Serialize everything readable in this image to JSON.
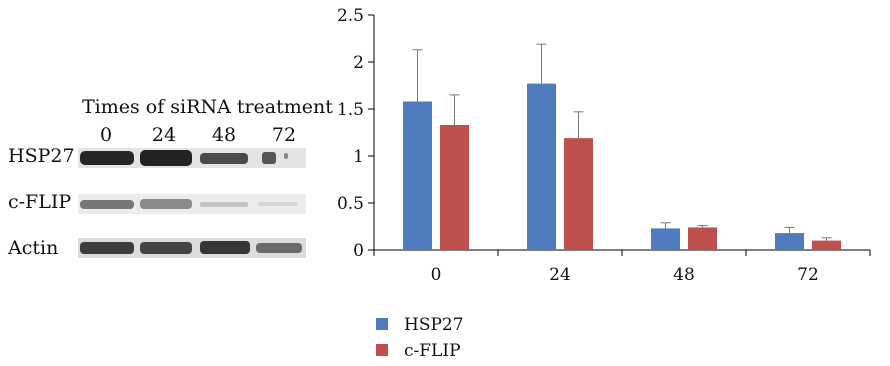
{
  "blot": {
    "title": "Times of siRNA treatment",
    "lanes": [
      "0",
      "24",
      "48",
      "72"
    ],
    "rows": [
      "HSP27",
      "c-FLIP",
      "Actin"
    ]
  },
  "chart_data": {
    "type": "bar",
    "categories": [
      "0",
      "24",
      "48",
      "72"
    ],
    "series": [
      {
        "name": "HSP27",
        "values": [
          1.58,
          1.77,
          0.23,
          0.18
        ],
        "errors": [
          0.55,
          0.42,
          0.06,
          0.06
        ],
        "color": "#4f7bbf"
      },
      {
        "name": "c-FLIP",
        "values": [
          1.33,
          1.19,
          0.24,
          0.1
        ],
        "errors": [
          0.32,
          0.28,
          0.02,
          0.03
        ],
        "color": "#c0504d"
      }
    ],
    "ylim": [
      0,
      2.5
    ],
    "yticks": [
      "0",
      "0.5",
      "1",
      "1.5",
      "2",
      "2.5"
    ],
    "legend": "bottom"
  }
}
